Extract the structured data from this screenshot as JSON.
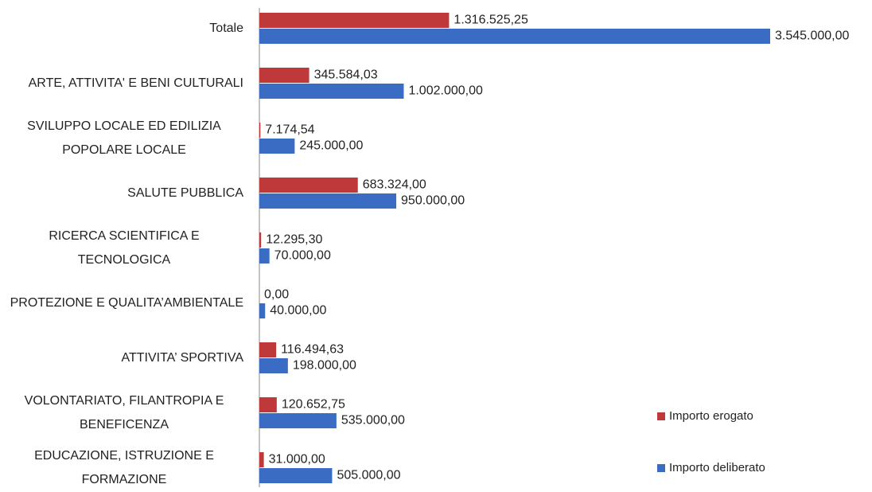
{
  "chart_data": {
    "type": "bar",
    "orientation": "horizontal",
    "categories": [
      "Totale",
      "ARTE, ATTIVITA' E BENI CULTURALI",
      "SVILUPPO LOCALE ED EDILIZIA POPOLARE LOCALE",
      "SALUTE PUBBLICA",
      "RICERCA SCIENTIFICA E TECNOLOGICA",
      "PROTEZIONE E QUALITA’AMBIENTALE",
      "ATTIVITA’ SPORTIVA",
      "VOLONTARIATO, FILANTROPIA E BENEFICENZA",
      "EDUCAZIONE, ISTRUZIONE E FORMAZIONE"
    ],
    "series": [
      {
        "name": "Importo erogato",
        "color": "#c0393a",
        "values": [
          1316525.25,
          345584.03,
          7174.54,
          683324.0,
          12295.3,
          0,
          116494.63,
          120652.75,
          31000.0
        ],
        "value_labels": [
          "1.316.525,25",
          "345.584,03",
          "7.174,54",
          "683.324,00",
          "12.295,30",
          "0,00",
          "116.494,63",
          "120.652,75",
          "31.000,00"
        ]
      },
      {
        "name": "Importo deliberato",
        "color": "#3a6cc4",
        "values": [
          3545000,
          1002000,
          245000,
          950000,
          70000,
          40000,
          198000,
          535000,
          505000
        ],
        "value_labels": [
          "3.545.000,00",
          "1.002.000,00",
          "245.000,00",
          "950.000,00",
          "70.000,00",
          "40.000,00",
          "198.000,00",
          "535.000,00",
          "505.000,00"
        ]
      }
    ],
    "legend": "right-bottom"
  }
}
